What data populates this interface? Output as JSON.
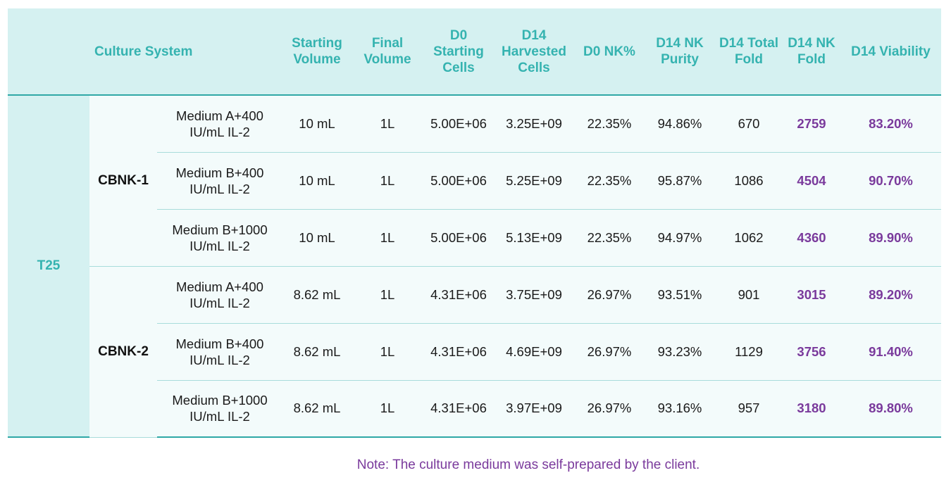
{
  "headers": [
    "",
    "Culture System",
    "",
    "Starting\nVolume",
    "Final\nVolume",
    "D0\nStarting\nCells",
    "D14\nHarvested\nCells",
    "D0 NK%",
    "D14 NK\nPurity",
    "D14 Total\nFold",
    "D14 NK\nFold",
    "D14 Viability"
  ],
  "vessel": "T25",
  "groups": [
    {
      "name": "CBNK-1",
      "rows": [
        {
          "medium": "Medium A+400\nIU/mL IL-2",
          "start_vol": "10 mL",
          "final_vol": "1L",
          "d0_cells": "5.00E+06",
          "d14_cells": "3.25E+09",
          "d0_nk": "22.35%",
          "d14_purity": "94.86%",
          "total_fold": "670",
          "nk_fold": "2759",
          "viability": "83.20%"
        },
        {
          "medium": "Medium B+400\nIU/mL IL-2",
          "start_vol": "10 mL",
          "final_vol": "1L",
          "d0_cells": "5.00E+06",
          "d14_cells": "5.25E+09",
          "d0_nk": "22.35%",
          "d14_purity": "95.87%",
          "total_fold": "1086",
          "nk_fold": "4504",
          "viability": "90.70%"
        },
        {
          "medium": "Medium B+1000\nIU/mL IL-2",
          "start_vol": "10 mL",
          "final_vol": "1L",
          "d0_cells": "5.00E+06",
          "d14_cells": "5.13E+09",
          "d0_nk": "22.35%",
          "d14_purity": "94.97%",
          "total_fold": "1062",
          "nk_fold": "4360",
          "viability": "89.90%"
        }
      ]
    },
    {
      "name": "CBNK-2",
      "rows": [
        {
          "medium": "Medium A+400\nIU/mL IL-2",
          "start_vol": "8.62 mL",
          "final_vol": "1L",
          "d0_cells": "4.31E+06",
          "d14_cells": "3.75E+09",
          "d0_nk": "26.97%",
          "d14_purity": "93.51%",
          "total_fold": "901",
          "nk_fold": "3015",
          "viability": "89.20%"
        },
        {
          "medium": "Medium B+400\nIU/mL IL-2",
          "start_vol": "8.62 mL",
          "final_vol": "1L",
          "d0_cells": "4.31E+06",
          "d14_cells": "4.69E+09",
          "d0_nk": "26.97%",
          "d14_purity": "93.23%",
          "total_fold": "1129",
          "nk_fold": "3756",
          "viability": "91.40%"
        },
        {
          "medium": "Medium B+1000\nIU/mL IL-2",
          "start_vol": "8.62 mL",
          "final_vol": "1L",
          "d0_cells": "4.31E+06",
          "d14_cells": "3.97E+09",
          "d0_nk": "26.97%",
          "d14_purity": "93.16%",
          "total_fold": "957",
          "nk_fold": "3180",
          "viability": "89.80%"
        }
      ]
    }
  ],
  "note": "Note: The culture medium was self-prepared by the client.",
  "colors": {
    "header_bg": "#d5f1f1",
    "header_text": "#35b3b0",
    "highlight": "#7a3a9c",
    "rule": "#2fa8a6"
  }
}
